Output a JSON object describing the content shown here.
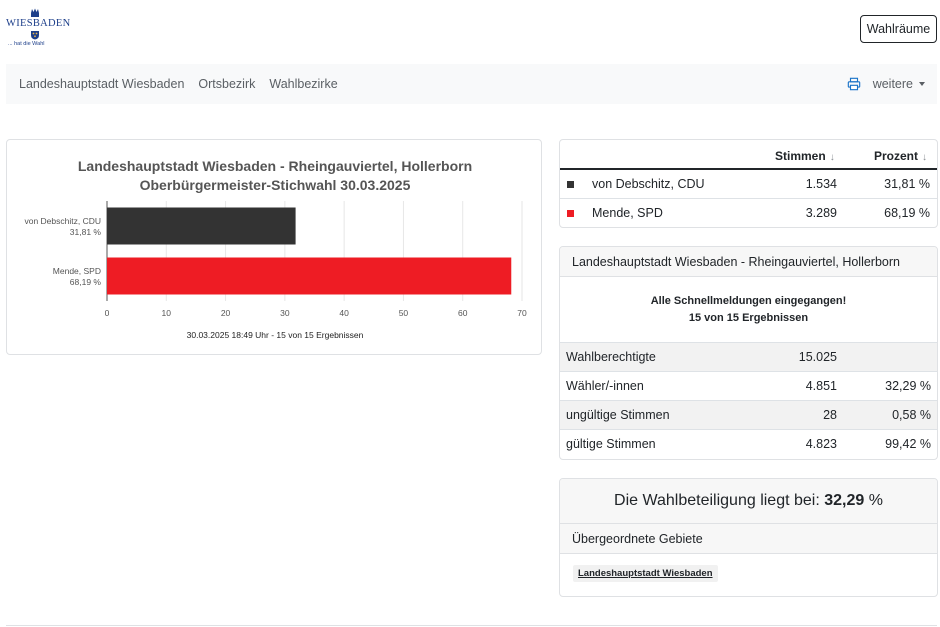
{
  "header": {
    "logo_word": "WIESBADEN",
    "logo_tagline": "... hat die Wahl",
    "wahlraeume_label": "Wahlräume"
  },
  "nav": {
    "items": [
      "Landeshauptstadt Wiesbaden",
      "Ortsbezirk",
      "Wahlbezirke"
    ],
    "print_icon": "printer-icon",
    "more_label": "weitere"
  },
  "chart_data": {
    "type": "bar",
    "orientation": "horizontal",
    "title": "Landeshauptstadt Wiesbaden - Rheingauviertel, Hollerborn",
    "subtitle": "Oberbürgermeister-Stichwahl 30.03.2025",
    "categories": [
      "von Debschitz, CDU",
      "Mende, SPD"
    ],
    "category_labels": [
      "31,81 %",
      "68,19 %"
    ],
    "values": [
      31.81,
      68.19
    ],
    "colors": [
      "#333333",
      "#ee1c24"
    ],
    "xlim": [
      0,
      70
    ],
    "xticks": [
      0,
      10,
      20,
      30,
      40,
      50,
      60,
      70
    ],
    "grid": true,
    "footnote": "30.03.2025 18:49 Uhr - 15 von 15 Ergebnissen"
  },
  "results": {
    "columns": {
      "stimmen": "Stimmen",
      "prozent": "Prozent",
      "sort_arrow": "↓"
    },
    "rows": [
      {
        "name": "von Debschitz, CDU",
        "stimmen": "1.534",
        "prozent": "31,81 %",
        "color": "#333333"
      },
      {
        "name": "Mende, SPD",
        "stimmen": "3.289",
        "prozent": "68,19 %",
        "color": "#ee1c24"
      }
    ]
  },
  "area": {
    "title": "Landeshauptstadt Wiesbaden - Rheingauviertel, Hollerborn",
    "status_line1": "Alle Schnellmeldungen eingegangen!",
    "status_line2": "15 von 15 Ergebnissen",
    "stats": [
      {
        "label": "Wahlberechtigte",
        "value": "15.025",
        "pct": ""
      },
      {
        "label": "Wähler/-innen",
        "value": "4.851",
        "pct": "32,29 %"
      },
      {
        "label": "ungültige Stimmen",
        "value": "28",
        "pct": "0,58 %"
      },
      {
        "label": "gültige Stimmen",
        "value": "4.823",
        "pct": "99,42 %"
      }
    ]
  },
  "turnout": {
    "prefix": "Die Wahlbeteiligung liegt bei:",
    "value": "32,29",
    "suffix": "%",
    "parent_header": "Übergeordnete Gebiete",
    "parent_link": "Landeshauptstadt Wiesbaden"
  }
}
